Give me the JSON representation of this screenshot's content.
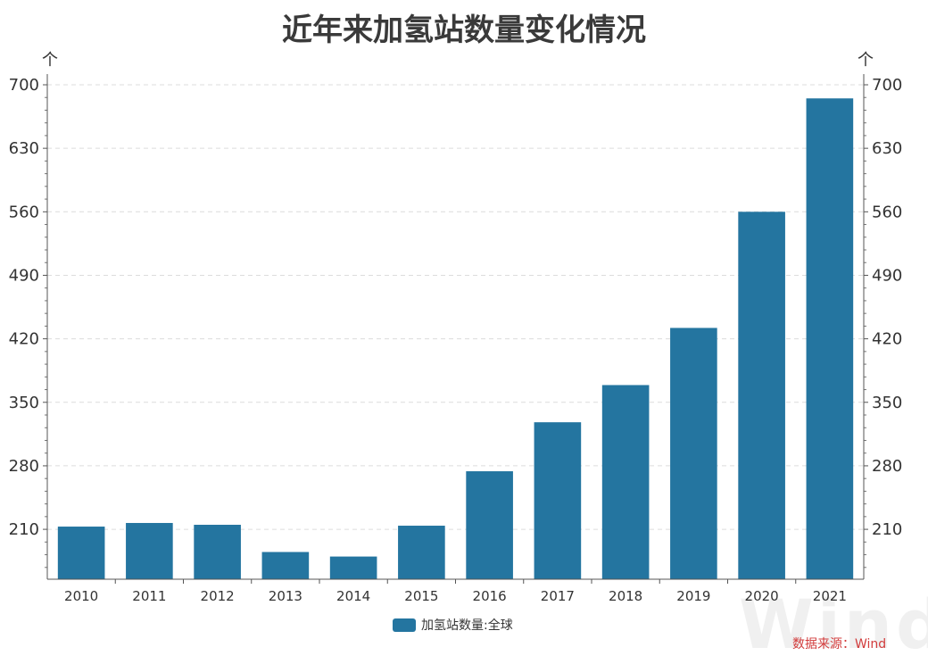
{
  "chart_data": {
    "type": "bar",
    "title": "近年来加氢站数量变化情况",
    "categories": [
      "2010",
      "2011",
      "2012",
      "2013",
      "2014",
      "2015",
      "2016",
      "2017",
      "2018",
      "2019",
      "2020",
      "2021"
    ],
    "series": [
      {
        "name": "加氢站数量:全球",
        "values": [
          213,
          217,
          215,
          185,
          180,
          214,
          274,
          328,
          369,
          432,
          560,
          685
        ]
      }
    ],
    "ylim": [
      155,
      700
    ],
    "yticks": [
      210,
      280,
      350,
      420,
      490,
      560,
      630,
      700
    ],
    "left_axis_unit": "个",
    "right_axis_unit": "个",
    "grid": true,
    "legend_position": "bottom",
    "bar_color": "#2475a0"
  },
  "source_text": "数据来源：Wind",
  "watermark_text": "Wind"
}
